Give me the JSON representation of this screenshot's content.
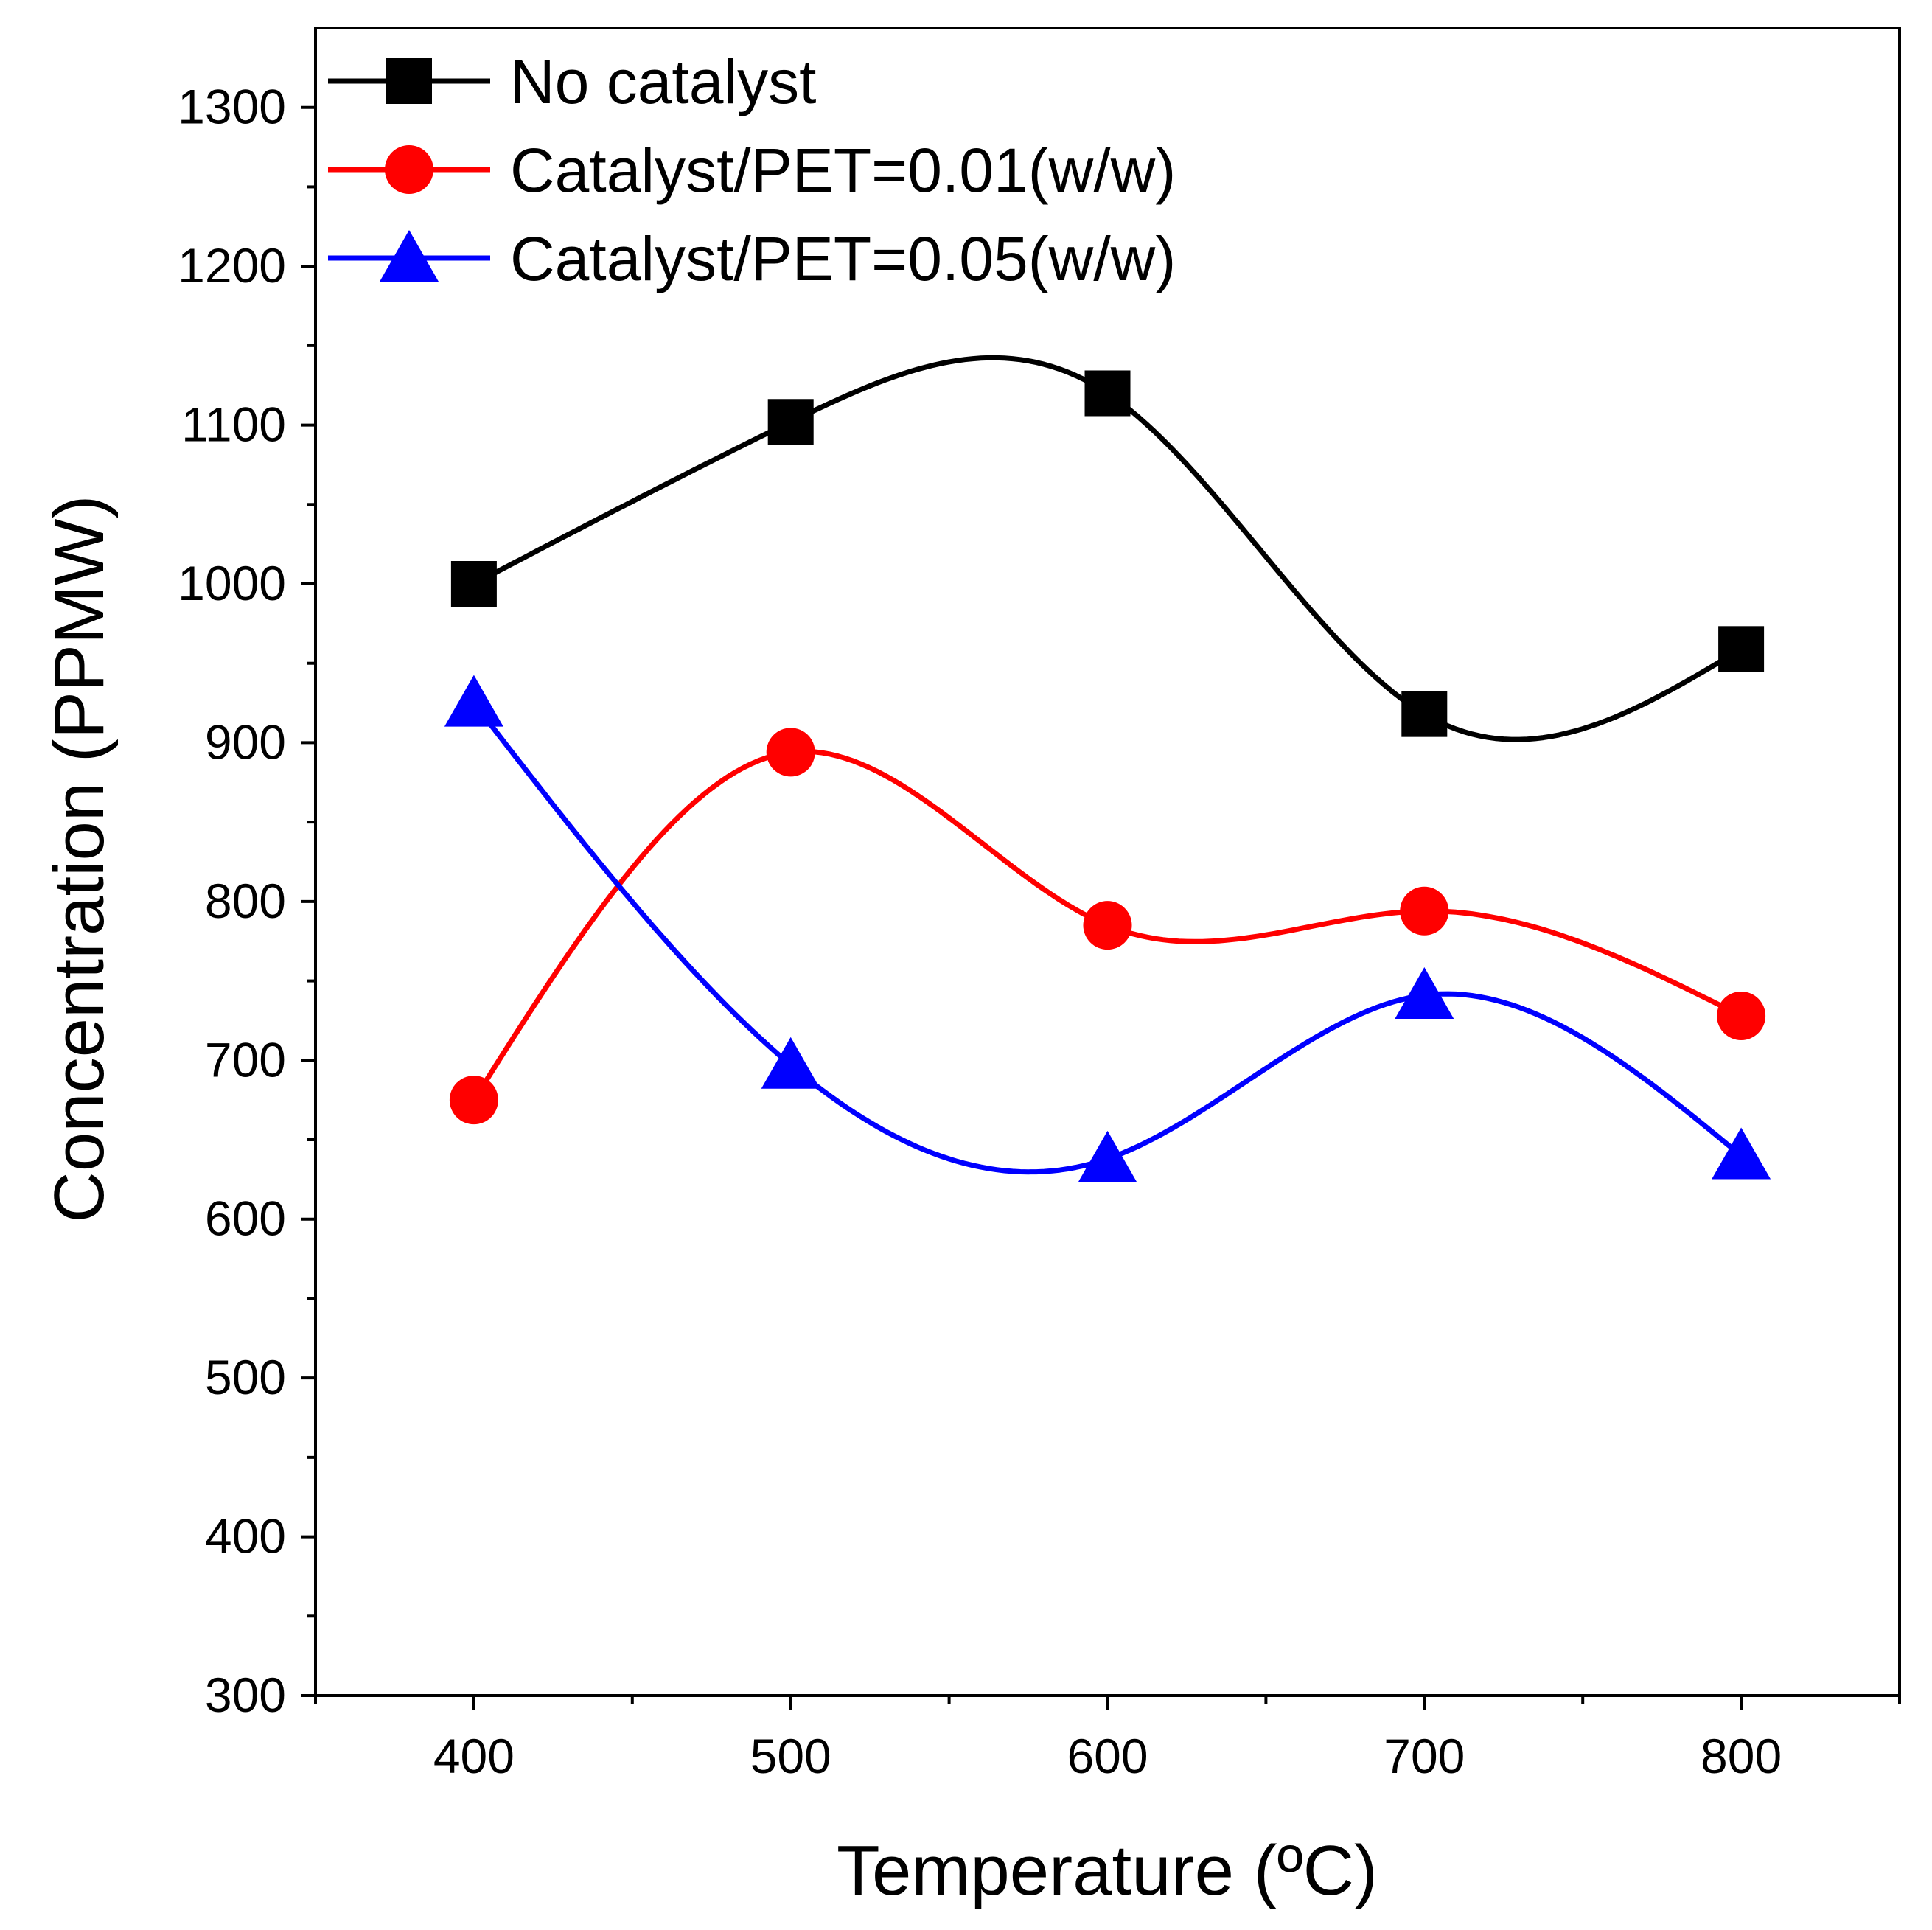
{
  "chart_data": {
    "type": "line",
    "title": "",
    "xlabel": "Temperature (ºC)",
    "ylabel": "Concentration (PPMW)",
    "xlim": [
      350,
      850
    ],
    "ylim": [
      300,
      1350
    ],
    "x": [
      400,
      500,
      600,
      700,
      800
    ],
    "x_ticks": [
      400,
      500,
      600,
      700,
      800
    ],
    "x_tick_labels": [
      "400",
      "500",
      "600",
      "700",
      "800"
    ],
    "y_ticks": [
      300,
      400,
      500,
      600,
      700,
      800,
      900,
      1000,
      1100,
      1200,
      1300
    ],
    "y_tick_labels": [
      "300",
      "400",
      "500",
      "600",
      "700",
      "800",
      "900",
      "1000",
      "1100",
      "1200",
      "1300"
    ],
    "grid": false,
    "legend_position": "top-left",
    "series": [
      {
        "name": "No catalyst",
        "color": "#000000",
        "marker": "square",
        "values": [
          1000,
          1102,
          1120,
          918,
          959
        ]
      },
      {
        "name": "Catalyst/PET=0.01(w/w)",
        "color": "#ff0000",
        "marker": "circle",
        "values": [
          675,
          894,
          785,
          794,
          728
        ]
      },
      {
        "name": "Catalyst/PET=0.05(w/w)",
        "color": "#0000ff",
        "marker": "triangle",
        "values": [
          925,
          697,
          638,
          741,
          640
        ]
      }
    ]
  }
}
